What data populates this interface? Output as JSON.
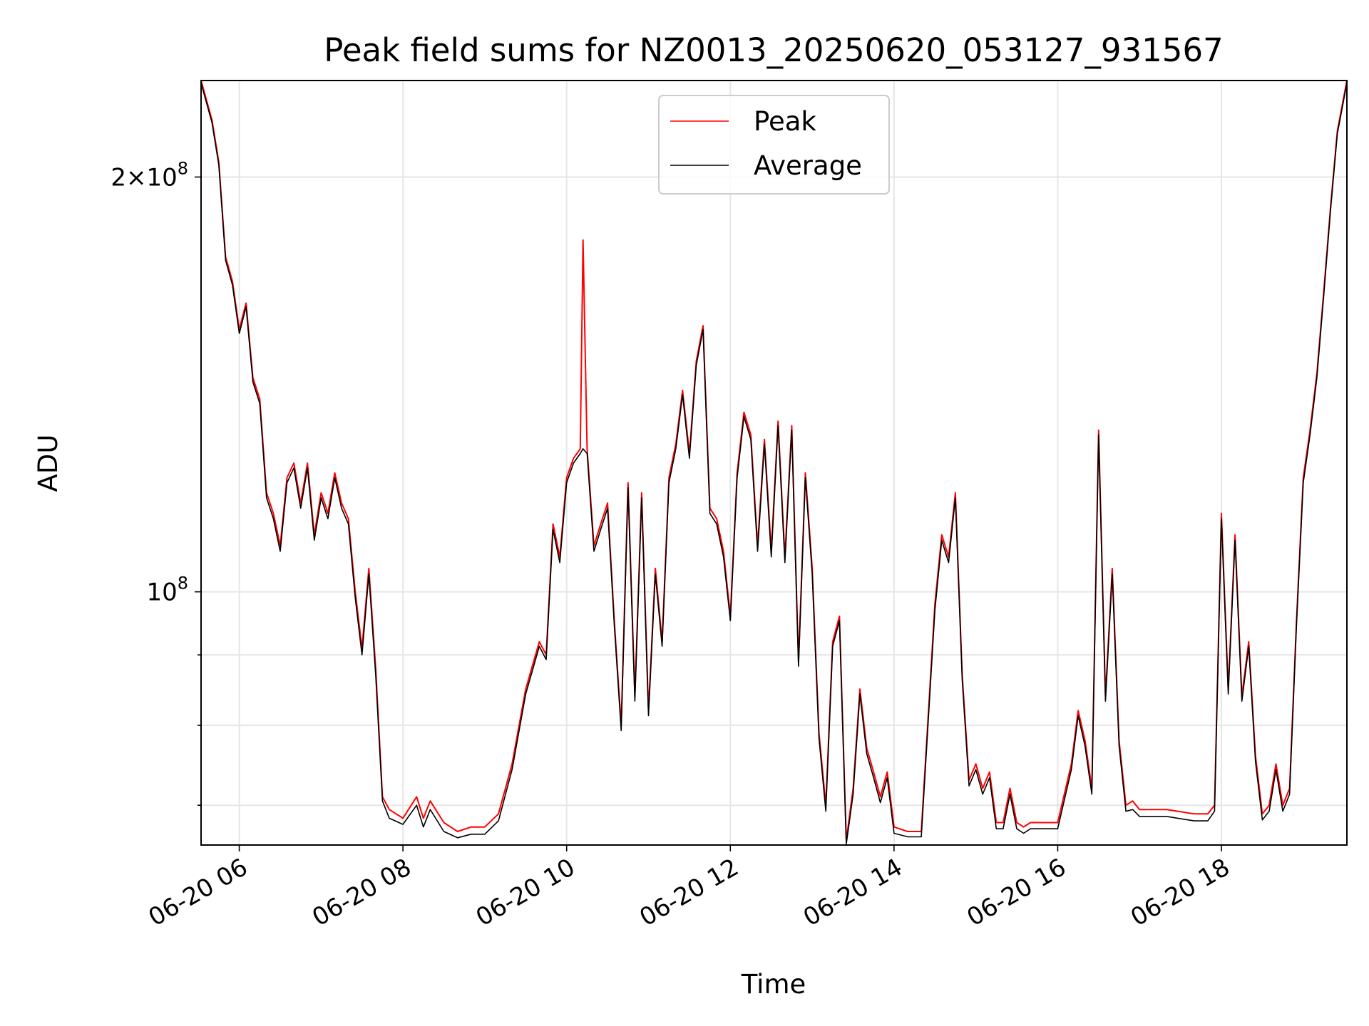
{
  "chart_data": {
    "type": "line",
    "title": "Peak field sums for NZ0013_20250620_053127_931567",
    "xlabel": "Time",
    "ylabel": "ADU",
    "x_scale": "time",
    "y_scale": "log",
    "xlim": [
      "2025-06-20 05:32",
      "2025-06-20 19:32"
    ],
    "ylim": [
      65500000,
      235000000
    ],
    "x_ticks": [
      {
        "value": "2025-06-20 06:00",
        "label": "06-20 06"
      },
      {
        "value": "2025-06-20 08:00",
        "label": "06-20 08"
      },
      {
        "value": "2025-06-20 10:00",
        "label": "06-20 10"
      },
      {
        "value": "2025-06-20 12:00",
        "label": "06-20 12"
      },
      {
        "value": "2025-06-20 14:00",
        "label": "06-20 14"
      },
      {
        "value": "2025-06-20 16:00",
        "label": "06-20 16"
      },
      {
        "value": "2025-06-20 18:00",
        "label": "06-20 18"
      }
    ],
    "y_major_ticks": [
      {
        "value": 100000000,
        "base": "10",
        "exp": "8"
      },
      {
        "value": 200000000,
        "coef": "2",
        "base": "10",
        "exp": "8"
      }
    ],
    "y_minor_ticks": [
      70000000,
      80000000,
      90000000
    ],
    "grid": true,
    "legend_position": "upper-center",
    "series": [
      {
        "name": "Peak",
        "color": "#ff0000",
        "x": [
          "2025-06-20 05:32",
          "2025-06-20 05:40",
          "2025-06-20 05:45",
          "2025-06-20 05:50",
          "2025-06-20 05:55",
          "2025-06-20 06:00",
          "2025-06-20 06:05",
          "2025-06-20 06:10",
          "2025-06-20 06:15",
          "2025-06-20 06:20",
          "2025-06-20 06:25",
          "2025-06-20 06:30",
          "2025-06-20 06:35",
          "2025-06-20 06:40",
          "2025-06-20 06:45",
          "2025-06-20 06:50",
          "2025-06-20 06:55",
          "2025-06-20 07:00",
          "2025-06-20 07:05",
          "2025-06-20 07:10",
          "2025-06-20 07:15",
          "2025-06-20 07:20",
          "2025-06-20 07:25",
          "2025-06-20 07:30",
          "2025-06-20 07:35",
          "2025-06-20 07:40",
          "2025-06-20 07:45",
          "2025-06-20 07:50",
          "2025-06-20 08:00",
          "2025-06-20 08:10",
          "2025-06-20 08:15",
          "2025-06-20 08:20",
          "2025-06-20 08:30",
          "2025-06-20 08:40",
          "2025-06-20 08:50",
          "2025-06-20 09:00",
          "2025-06-20 09:10",
          "2025-06-20 09:20",
          "2025-06-20 09:30",
          "2025-06-20 09:40",
          "2025-06-20 09:45",
          "2025-06-20 09:50",
          "2025-06-20 09:55",
          "2025-06-20 10:00",
          "2025-06-20 10:05",
          "2025-06-20 10:10",
          "2025-06-20 10:12",
          "2025-06-20 10:15",
          "2025-06-20 10:20",
          "2025-06-20 10:25",
          "2025-06-20 10:30",
          "2025-06-20 10:35",
          "2025-06-20 10:40",
          "2025-06-20 10:45",
          "2025-06-20 10:50",
          "2025-06-20 10:55",
          "2025-06-20 11:00",
          "2025-06-20 11:05",
          "2025-06-20 11:10",
          "2025-06-20 11:15",
          "2025-06-20 11:20",
          "2025-06-20 11:25",
          "2025-06-20 11:30",
          "2025-06-20 11:35",
          "2025-06-20 11:40",
          "2025-06-20 11:45",
          "2025-06-20 11:50",
          "2025-06-20 11:55",
          "2025-06-20 12:00",
          "2025-06-20 12:05",
          "2025-06-20 12:10",
          "2025-06-20 12:15",
          "2025-06-20 12:20",
          "2025-06-20 12:25",
          "2025-06-20 12:30",
          "2025-06-20 12:35",
          "2025-06-20 12:40",
          "2025-06-20 12:45",
          "2025-06-20 12:50",
          "2025-06-20 12:55",
          "2025-06-20 13:00",
          "2025-06-20 13:05",
          "2025-06-20 13:10",
          "2025-06-20 13:15",
          "2025-06-20 13:20",
          "2025-06-20 13:25",
          "2025-06-20 13:30",
          "2025-06-20 13:35",
          "2025-06-20 13:40",
          "2025-06-20 13:45",
          "2025-06-20 13:50",
          "2025-06-20 13:55",
          "2025-06-20 14:00",
          "2025-06-20 14:10",
          "2025-06-20 14:20",
          "2025-06-20 14:30",
          "2025-06-20 14:35",
          "2025-06-20 14:40",
          "2025-06-20 14:45",
          "2025-06-20 14:50",
          "2025-06-20 14:55",
          "2025-06-20 15:00",
          "2025-06-20 15:05",
          "2025-06-20 15:10",
          "2025-06-20 15:15",
          "2025-06-20 15:20",
          "2025-06-20 15:25",
          "2025-06-20 15:30",
          "2025-06-20 15:35",
          "2025-06-20 15:40",
          "2025-06-20 15:50",
          "2025-06-20 16:00",
          "2025-06-20 16:10",
          "2025-06-20 16:15",
          "2025-06-20 16:20",
          "2025-06-20 16:25",
          "2025-06-20 16:30",
          "2025-06-20 16:35",
          "2025-06-20 16:40",
          "2025-06-20 16:45",
          "2025-06-20 16:50",
          "2025-06-20 16:55",
          "2025-06-20 17:00",
          "2025-06-20 17:20",
          "2025-06-20 17:40",
          "2025-06-20 17:50",
          "2025-06-20 17:55",
          "2025-06-20 18:00",
          "2025-06-20 18:05",
          "2025-06-20 18:10",
          "2025-06-20 18:15",
          "2025-06-20 18:20",
          "2025-06-20 18:25",
          "2025-06-20 18:30",
          "2025-06-20 18:35",
          "2025-06-20 18:40",
          "2025-06-20 18:45",
          "2025-06-20 18:50",
          "2025-06-20 18:55",
          "2025-06-20 19:00",
          "2025-06-20 19:05",
          "2025-06-20 19:10",
          "2025-06-20 19:15",
          "2025-06-20 19:20",
          "2025-06-20 19:25",
          "2025-06-20 19:32"
        ],
        "y": [
          235000000,
          220000000,
          205000000,
          175000000,
          168000000,
          155000000,
          162000000,
          143000000,
          138000000,
          118000000,
          114000000,
          108000000,
          121000000,
          124000000,
          116000000,
          124000000,
          110000000,
          118000000,
          114000000,
          122000000,
          116000000,
          113000000,
          100000000,
          91000000,
          104000000,
          88000000,
          71000000,
          69500000,
          68500000,
          71000000,
          68500000,
          70500000,
          68000000,
          67000000,
          67500000,
          67500000,
          69000000,
          75000000,
          85000000,
          92000000,
          90000000,
          112000000,
          106000000,
          121000000,
          125000000,
          127000000,
          180000000,
          127000000,
          108000000,
          112000000,
          116000000,
          95000000,
          80000000,
          120000000,
          84000000,
          118000000,
          82000000,
          104000000,
          92000000,
          121000000,
          128000000,
          140000000,
          126000000,
          147000000,
          156000000,
          115000000,
          113000000,
          107000000,
          96000000,
          122000000,
          135000000,
          130000000,
          108000000,
          129000000,
          107000000,
          133000000,
          106000000,
          132000000,
          89000000,
          122000000,
          104000000,
          79000000,
          70000000,
          92000000,
          96000000,
          66000000,
          72000000,
          85000000,
          77000000,
          74000000,
          71000000,
          74000000,
          67500000,
          67000000,
          67000000,
          98000000,
          110000000,
          106000000,
          118000000,
          87000000,
          73000000,
          75000000,
          72000000,
          74000000,
          68000000,
          68000000,
          72000000,
          68000000,
          67500000,
          68000000,
          68000000,
          68000000,
          75000000,
          82000000,
          78000000,
          72000000,
          131000000,
          84000000,
          104000000,
          78000000,
          70000000,
          70500000,
          69500000,
          69500000,
          69000000,
          69000000,
          70000000,
          114000000,
          85000000,
          110000000,
          84000000,
          92000000,
          76000000,
          69000000,
          70000000,
          75000000,
          70000000,
          72000000,
          95000000,
          121000000,
          131000000,
          144000000,
          165000000,
          190000000,
          216000000,
          235000000
        ]
      },
      {
        "name": "Average",
        "color": "#000000",
        "x": [
          "2025-06-20 05:32",
          "2025-06-20 05:40",
          "2025-06-20 05:45",
          "2025-06-20 05:50",
          "2025-06-20 05:55",
          "2025-06-20 06:00",
          "2025-06-20 06:05",
          "2025-06-20 06:10",
          "2025-06-20 06:15",
          "2025-06-20 06:20",
          "2025-06-20 06:25",
          "2025-06-20 06:30",
          "2025-06-20 06:35",
          "2025-06-20 06:40",
          "2025-06-20 06:45",
          "2025-06-20 06:50",
          "2025-06-20 06:55",
          "2025-06-20 07:00",
          "2025-06-20 07:05",
          "2025-06-20 07:10",
          "2025-06-20 07:15",
          "2025-06-20 07:20",
          "2025-06-20 07:25",
          "2025-06-20 07:30",
          "2025-06-20 07:35",
          "2025-06-20 07:40",
          "2025-06-20 07:45",
          "2025-06-20 07:50",
          "2025-06-20 08:00",
          "2025-06-20 08:10",
          "2025-06-20 08:15",
          "2025-06-20 08:20",
          "2025-06-20 08:30",
          "2025-06-20 08:40",
          "2025-06-20 08:50",
          "2025-06-20 09:00",
          "2025-06-20 09:10",
          "2025-06-20 09:20",
          "2025-06-20 09:30",
          "2025-06-20 09:40",
          "2025-06-20 09:45",
          "2025-06-20 09:50",
          "2025-06-20 09:55",
          "2025-06-20 10:00",
          "2025-06-20 10:05",
          "2025-06-20 10:10",
          "2025-06-20 10:12",
          "2025-06-20 10:15",
          "2025-06-20 10:20",
          "2025-06-20 10:25",
          "2025-06-20 10:30",
          "2025-06-20 10:35",
          "2025-06-20 10:40",
          "2025-06-20 10:45",
          "2025-06-20 10:50",
          "2025-06-20 10:55",
          "2025-06-20 11:00",
          "2025-06-20 11:05",
          "2025-06-20 11:10",
          "2025-06-20 11:15",
          "2025-06-20 11:20",
          "2025-06-20 11:25",
          "2025-06-20 11:30",
          "2025-06-20 11:35",
          "2025-06-20 11:40",
          "2025-06-20 11:45",
          "2025-06-20 11:50",
          "2025-06-20 11:55",
          "2025-06-20 12:00",
          "2025-06-20 12:05",
          "2025-06-20 12:10",
          "2025-06-20 12:15",
          "2025-06-20 12:20",
          "2025-06-20 12:25",
          "2025-06-20 12:30",
          "2025-06-20 12:35",
          "2025-06-20 12:40",
          "2025-06-20 12:45",
          "2025-06-20 12:50",
          "2025-06-20 12:55",
          "2025-06-20 13:00",
          "2025-06-20 13:05",
          "2025-06-20 13:10",
          "2025-06-20 13:15",
          "2025-06-20 13:20",
          "2025-06-20 13:25",
          "2025-06-20 13:30",
          "2025-06-20 13:35",
          "2025-06-20 13:40",
          "2025-06-20 13:45",
          "2025-06-20 13:50",
          "2025-06-20 13:55",
          "2025-06-20 14:00",
          "2025-06-20 14:10",
          "2025-06-20 14:20",
          "2025-06-20 14:30",
          "2025-06-20 14:35",
          "2025-06-20 14:40",
          "2025-06-20 14:45",
          "2025-06-20 14:50",
          "2025-06-20 14:55",
          "2025-06-20 15:00",
          "2025-06-20 15:05",
          "2025-06-20 15:10",
          "2025-06-20 15:15",
          "2025-06-20 15:20",
          "2025-06-20 15:25",
          "2025-06-20 15:30",
          "2025-06-20 15:35",
          "2025-06-20 15:40",
          "2025-06-20 15:50",
          "2025-06-20 16:00",
          "2025-06-20 16:10",
          "2025-06-20 16:15",
          "2025-06-20 16:20",
          "2025-06-20 16:25",
          "2025-06-20 16:30",
          "2025-06-20 16:35",
          "2025-06-20 16:40",
          "2025-06-20 16:45",
          "2025-06-20 16:50",
          "2025-06-20 16:55",
          "2025-06-20 17:00",
          "2025-06-20 17:20",
          "2025-06-20 17:40",
          "2025-06-20 17:50",
          "2025-06-20 17:55",
          "2025-06-20 18:00",
          "2025-06-20 18:05",
          "2025-06-20 18:10",
          "2025-06-20 18:15",
          "2025-06-20 18:20",
          "2025-06-20 18:25",
          "2025-06-20 18:30",
          "2025-06-20 18:35",
          "2025-06-20 18:40",
          "2025-06-20 18:45",
          "2025-06-20 18:50",
          "2025-06-20 18:55",
          "2025-06-20 19:00",
          "2025-06-20 19:05",
          "2025-06-20 19:10",
          "2025-06-20 19:15",
          "2025-06-20 19:20",
          "2025-06-20 19:25",
          "2025-06-20 19:32"
        ],
        "y": [
          234000000,
          219000000,
          204000000,
          174000000,
          167000000,
          154000000,
          161000000,
          142000000,
          137000000,
          117000000,
          113000000,
          107000000,
          120000000,
          123000000,
          115000000,
          123000000,
          109000000,
          117000000,
          113000000,
          121000000,
          115000000,
          112000000,
          99000000,
          90000000,
          103000000,
          87000000,
          70500000,
          68500000,
          67800000,
          70000000,
          67500000,
          69500000,
          67000000,
          66300000,
          66700000,
          66700000,
          68200000,
          74300000,
          84300000,
          91300000,
          89300000,
          111000000,
          105000000,
          120000000,
          124000000,
          126000000,
          127000000,
          126000000,
          107000000,
          111000000,
          115000000,
          94300000,
          79300000,
          119000000,
          83300000,
          117000000,
          81300000,
          103000000,
          91300000,
          120000000,
          127000000,
          139000000,
          125000000,
          146000000,
          155000000,
          114000000,
          112000000,
          106000000,
          95300000,
          121000000,
          134000000,
          129000000,
          107000000,
          128000000,
          106000000,
          132000000,
          105000000,
          131000000,
          88300000,
          121000000,
          103000000,
          78300000,
          69300000,
          91300000,
          95300000,
          65600000,
          71300000,
          84300000,
          76300000,
          73300000,
          70300000,
          73300000,
          66800000,
          66400000,
          66400000,
          97000000,
          109000000,
          105000000,
          117000000,
          86300000,
          72300000,
          74300000,
          71300000,
          73300000,
          67300000,
          67300000,
          71300000,
          67300000,
          66800000,
          67300000,
          67300000,
          67300000,
          74300000,
          81300000,
          77300000,
          71300000,
          130000000,
          83300000,
          103000000,
          77300000,
          69300000,
          69500000,
          68700000,
          68700000,
          68200000,
          68200000,
          69300000,
          113000000,
          84300000,
          109000000,
          83300000,
          91300000,
          75300000,
          68300000,
          69300000,
          74300000,
          69300000,
          71300000,
          94300000,
          120000000,
          130000000,
          143000000,
          164000000,
          189000000,
          215000000,
          234000000
        ]
      }
    ]
  }
}
